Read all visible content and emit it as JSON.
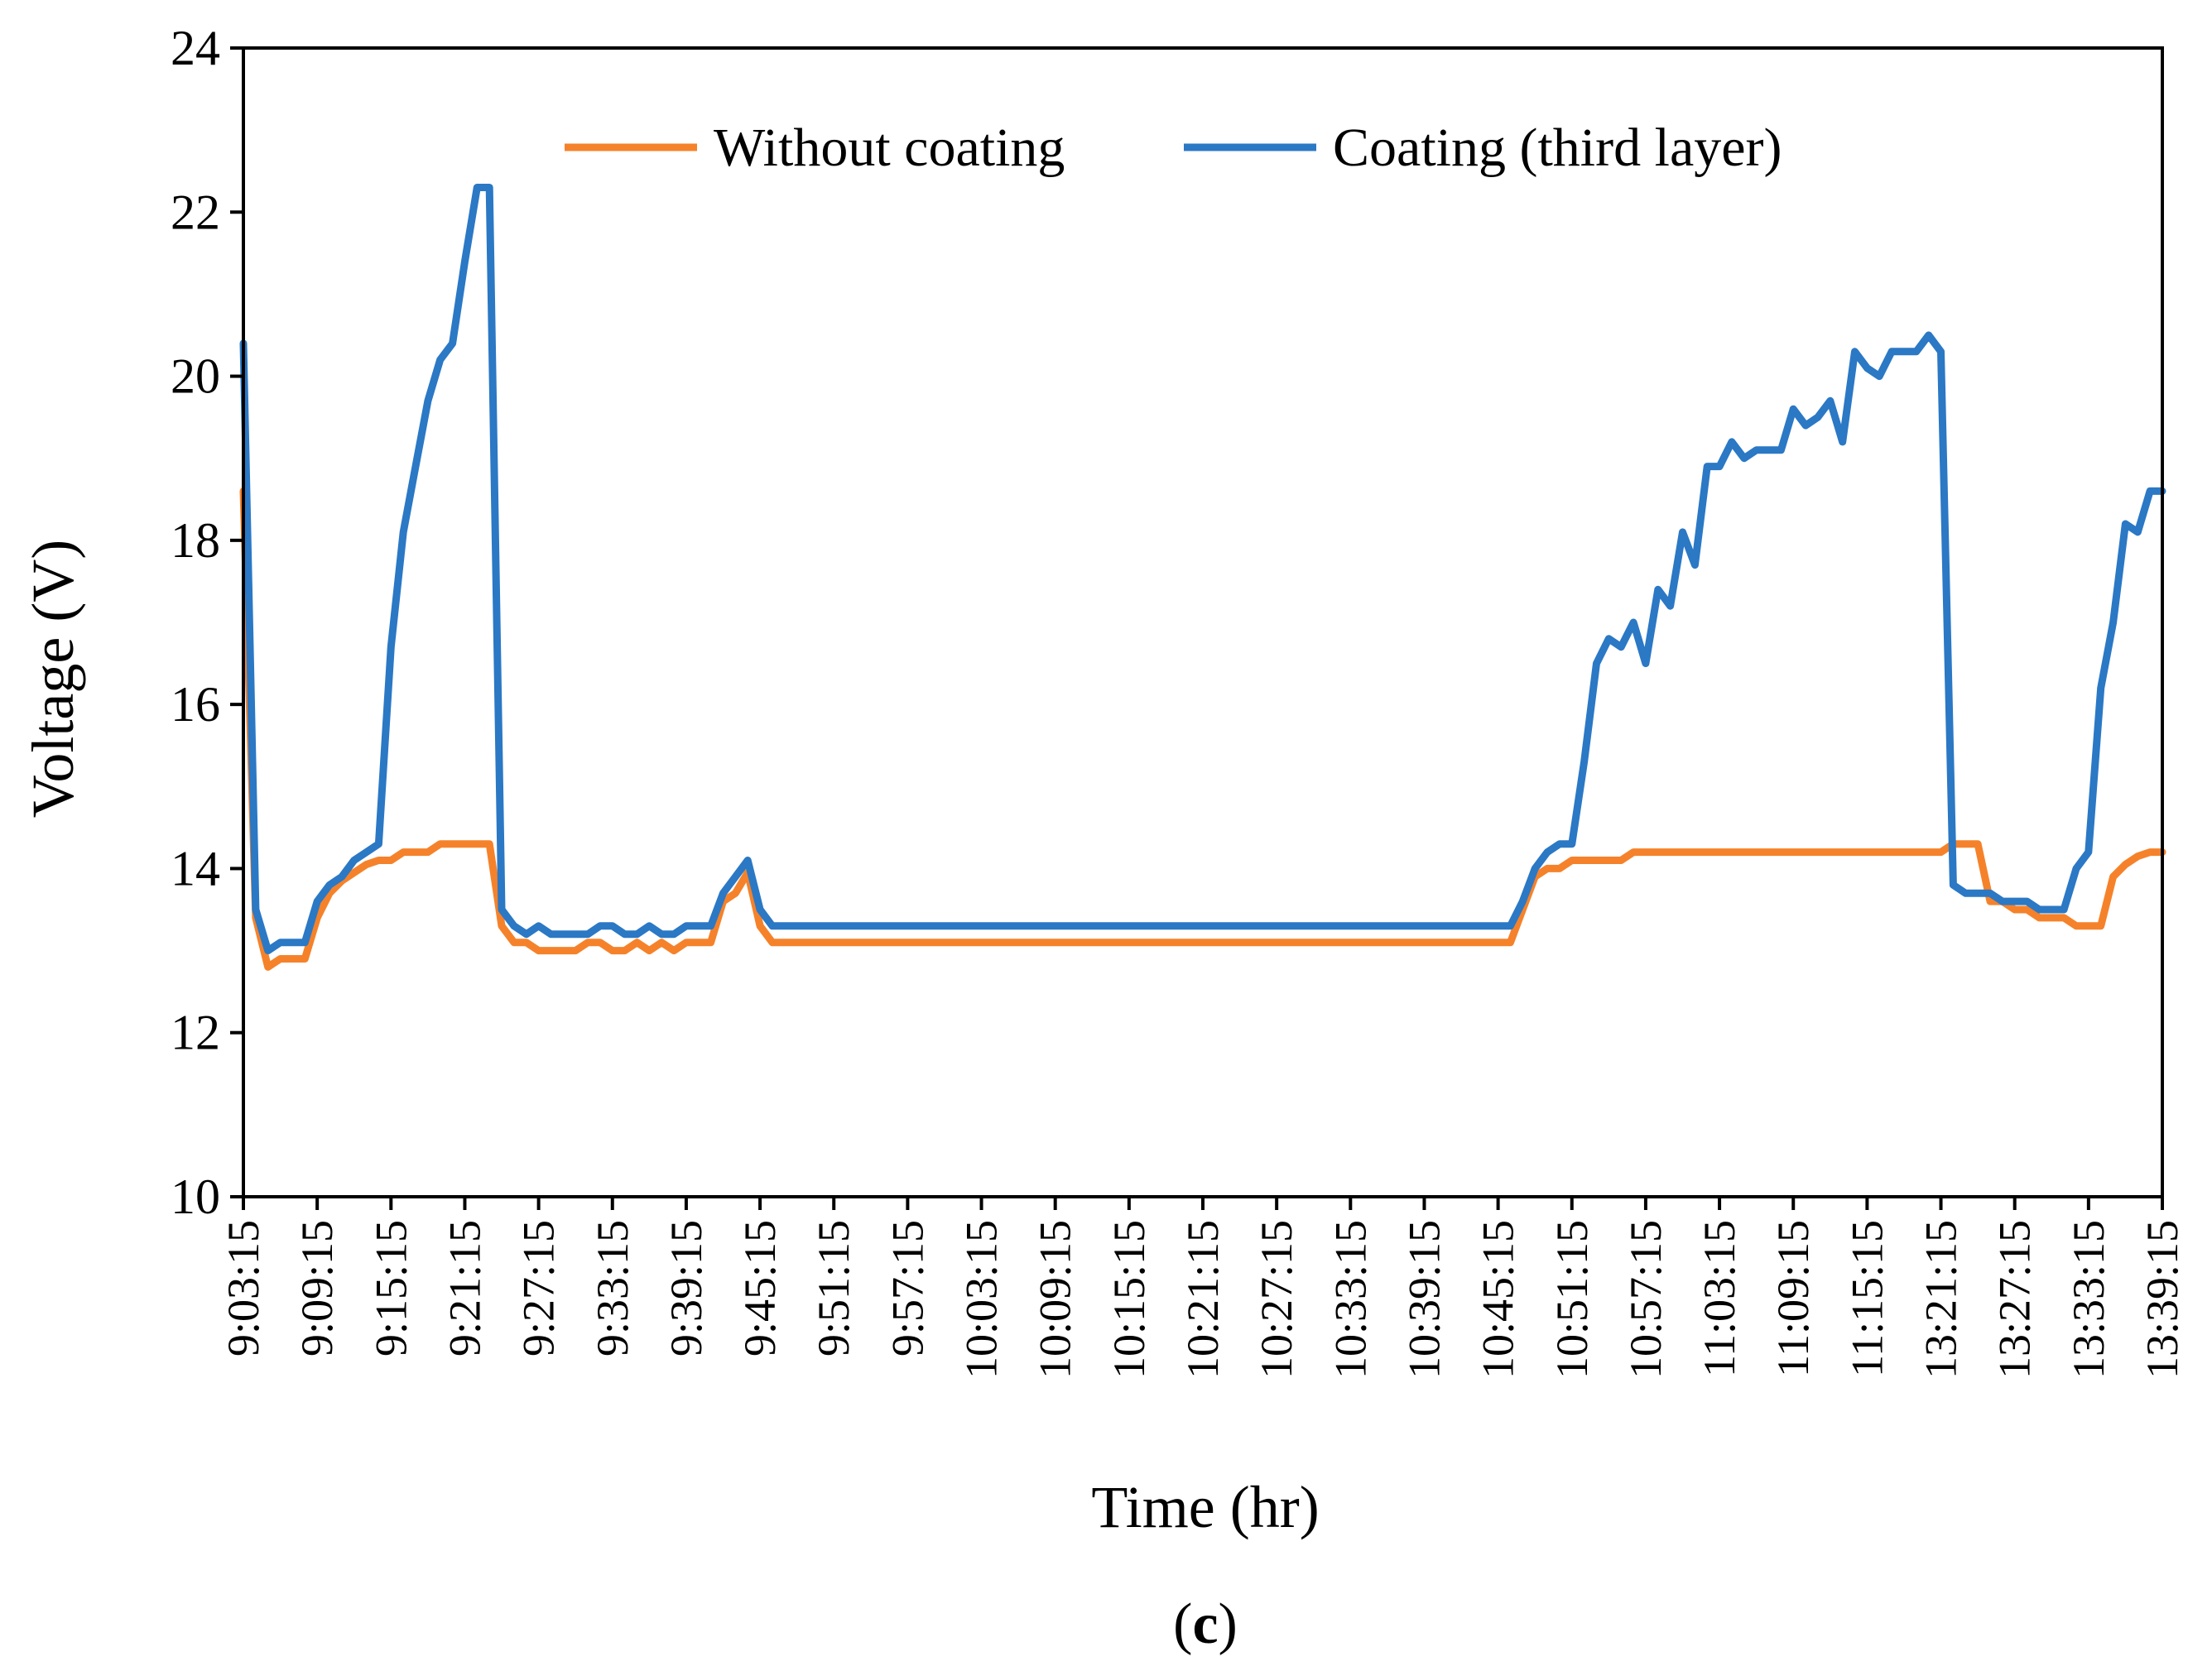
{
  "chart_data": {
    "type": "line",
    "title": "",
    "xlabel": "Time (hr)",
    "ylabel": "Voltage (V)",
    "ylim": [
      10,
      24
    ],
    "yticks": [
      10,
      12,
      14,
      16,
      18,
      20,
      22,
      24
    ],
    "grid": false,
    "legend_position": "top",
    "caption": "(c)",
    "caption_letter": "c",
    "tick_labels": [
      "9:03:15",
      "9:09:15",
      "9:15:15",
      "9:21:15",
      "9:27:15",
      "9:33:15",
      "9:39:15",
      "9:45:15",
      "9:51:15",
      "9:57:15",
      "10:03:15",
      "10:09:15",
      "10:15:15",
      "10:21:15",
      "10:27:15",
      "10:33:15",
      "10:39:15",
      "10:45:15",
      "10:51:15",
      "10:57:15",
      "11:03:15",
      "11:09:15",
      "11:15:15",
      "13:21:15",
      "13:27:15",
      "13:33:15",
      "13:39:15"
    ],
    "x_range": [
      0,
      156
    ],
    "series": [
      {
        "name": "Without coating",
        "color": "#F5822A",
        "points": [
          [
            0,
            18.6
          ],
          [
            1,
            13.4
          ],
          [
            2,
            12.8
          ],
          [
            3,
            12.9
          ],
          [
            4,
            12.9
          ],
          [
            5,
            12.9
          ],
          [
            6,
            13.4
          ],
          [
            7,
            13.7
          ],
          [
            8,
            13.85
          ],
          [
            9,
            13.95
          ],
          [
            10,
            14.05
          ],
          [
            11,
            14.1
          ],
          [
            12,
            14.1
          ],
          [
            13,
            14.2
          ],
          [
            14,
            14.2
          ],
          [
            15,
            14.2
          ],
          [
            16,
            14.3
          ],
          [
            17,
            14.3
          ],
          [
            18,
            14.3
          ],
          [
            19,
            14.3
          ],
          [
            20,
            14.3
          ],
          [
            21,
            13.3
          ],
          [
            22,
            13.1
          ],
          [
            23,
            13.1
          ],
          [
            24,
            13.0
          ],
          [
            25,
            13.0
          ],
          [
            26,
            13.0
          ],
          [
            27,
            13.0
          ],
          [
            28,
            13.1
          ],
          [
            29,
            13.1
          ],
          [
            30,
            13.0
          ],
          [
            31,
            13.0
          ],
          [
            32,
            13.1
          ],
          [
            33,
            13.0
          ],
          [
            34,
            13.1
          ],
          [
            35,
            13.0
          ],
          [
            36,
            13.1
          ],
          [
            37,
            13.1
          ],
          [
            38,
            13.1
          ],
          [
            39,
            13.6
          ],
          [
            40,
            13.7
          ],
          [
            41,
            13.95
          ],
          [
            42,
            13.3
          ],
          [
            43,
            13.1
          ],
          [
            46,
            13.1
          ],
          [
            60,
            13.1
          ],
          [
            80,
            13.1
          ],
          [
            100,
            13.1
          ],
          [
            103,
            13.1
          ],
          [
            104,
            13.5
          ],
          [
            105,
            13.9
          ],
          [
            106,
            14.0
          ],
          [
            107,
            14.0
          ],
          [
            108,
            14.1
          ],
          [
            110,
            14.1
          ],
          [
            112,
            14.1
          ],
          [
            113,
            14.2
          ],
          [
            120,
            14.2
          ],
          [
            130,
            14.2
          ],
          [
            138,
            14.2
          ],
          [
            139,
            14.3
          ],
          [
            140,
            14.3
          ],
          [
            141,
            14.3
          ],
          [
            142,
            13.6
          ],
          [
            143,
            13.6
          ],
          [
            144,
            13.5
          ],
          [
            145,
            13.5
          ],
          [
            146,
            13.4
          ],
          [
            147,
            13.4
          ],
          [
            148,
            13.4
          ],
          [
            149,
            13.3
          ],
          [
            150,
            13.3
          ],
          [
            151,
            13.3
          ],
          [
            152,
            13.9
          ],
          [
            153,
            14.05
          ],
          [
            154,
            14.15
          ],
          [
            155,
            14.2
          ],
          [
            156,
            14.2
          ]
        ]
      },
      {
        "name": "Coating (third layer)",
        "color": "#2B78C5",
        "points": [
          [
            0,
            20.4
          ],
          [
            1,
            13.5
          ],
          [
            2,
            13.0
          ],
          [
            3,
            13.1
          ],
          [
            4,
            13.1
          ],
          [
            5,
            13.1
          ],
          [
            6,
            13.6
          ],
          [
            7,
            13.8
          ],
          [
            8,
            13.9
          ],
          [
            9,
            14.1
          ],
          [
            10,
            14.2
          ],
          [
            11,
            14.3
          ],
          [
            12,
            16.7
          ],
          [
            13,
            18.1
          ],
          [
            14,
            18.9
          ],
          [
            15,
            19.7
          ],
          [
            16,
            20.2
          ],
          [
            17,
            20.4
          ],
          [
            18,
            21.4
          ],
          [
            19,
            22.3
          ],
          [
            20,
            22.3
          ],
          [
            21,
            13.5
          ],
          [
            22,
            13.3
          ],
          [
            23,
            13.2
          ],
          [
            24,
            13.3
          ],
          [
            25,
            13.2
          ],
          [
            26,
            13.2
          ],
          [
            27,
            13.2
          ],
          [
            28,
            13.2
          ],
          [
            29,
            13.3
          ],
          [
            30,
            13.3
          ],
          [
            31,
            13.2
          ],
          [
            32,
            13.2
          ],
          [
            33,
            13.3
          ],
          [
            34,
            13.2
          ],
          [
            35,
            13.2
          ],
          [
            36,
            13.3
          ],
          [
            37,
            13.3
          ],
          [
            38,
            13.3
          ],
          [
            39,
            13.7
          ],
          [
            40,
            13.9
          ],
          [
            41,
            14.1
          ],
          [
            42,
            13.5
          ],
          [
            43,
            13.3
          ],
          [
            46,
            13.3
          ],
          [
            60,
            13.3
          ],
          [
            80,
            13.3
          ],
          [
            100,
            13.3
          ],
          [
            103,
            13.3
          ],
          [
            104,
            13.6
          ],
          [
            105,
            14.0
          ],
          [
            106,
            14.2
          ],
          [
            107,
            14.3
          ],
          [
            108,
            14.3
          ],
          [
            109,
            15.3
          ],
          [
            110,
            16.5
          ],
          [
            111,
            16.8
          ],
          [
            112,
            16.7
          ],
          [
            113,
            17.0
          ],
          [
            114,
            16.5
          ],
          [
            115,
            17.4
          ],
          [
            116,
            17.2
          ],
          [
            117,
            18.1
          ],
          [
            118,
            17.7
          ],
          [
            119,
            18.9
          ],
          [
            120,
            18.9
          ],
          [
            121,
            19.2
          ],
          [
            122,
            19.0
          ],
          [
            123,
            19.1
          ],
          [
            124,
            19.1
          ],
          [
            125,
            19.1
          ],
          [
            126,
            19.6
          ],
          [
            127,
            19.4
          ],
          [
            128,
            19.5
          ],
          [
            129,
            19.7
          ],
          [
            130,
            19.2
          ],
          [
            131,
            20.3
          ],
          [
            132,
            20.1
          ],
          [
            133,
            20.0
          ],
          [
            134,
            20.3
          ],
          [
            135,
            20.3
          ],
          [
            136,
            20.3
          ],
          [
            137,
            20.5
          ],
          [
            138,
            20.3
          ],
          [
            139,
            13.8
          ],
          [
            140,
            13.7
          ],
          [
            141,
            13.7
          ],
          [
            142,
            13.7
          ],
          [
            143,
            13.6
          ],
          [
            144,
            13.6
          ],
          [
            145,
            13.6
          ],
          [
            146,
            13.5
          ],
          [
            147,
            13.5
          ],
          [
            148,
            13.5
          ],
          [
            149,
            14.0
          ],
          [
            150,
            14.2
          ],
          [
            151,
            16.2
          ],
          [
            152,
            17.0
          ],
          [
            153,
            18.2
          ],
          [
            154,
            18.1
          ],
          [
            155,
            18.6
          ],
          [
            156,
            18.6
          ]
        ]
      }
    ]
  }
}
